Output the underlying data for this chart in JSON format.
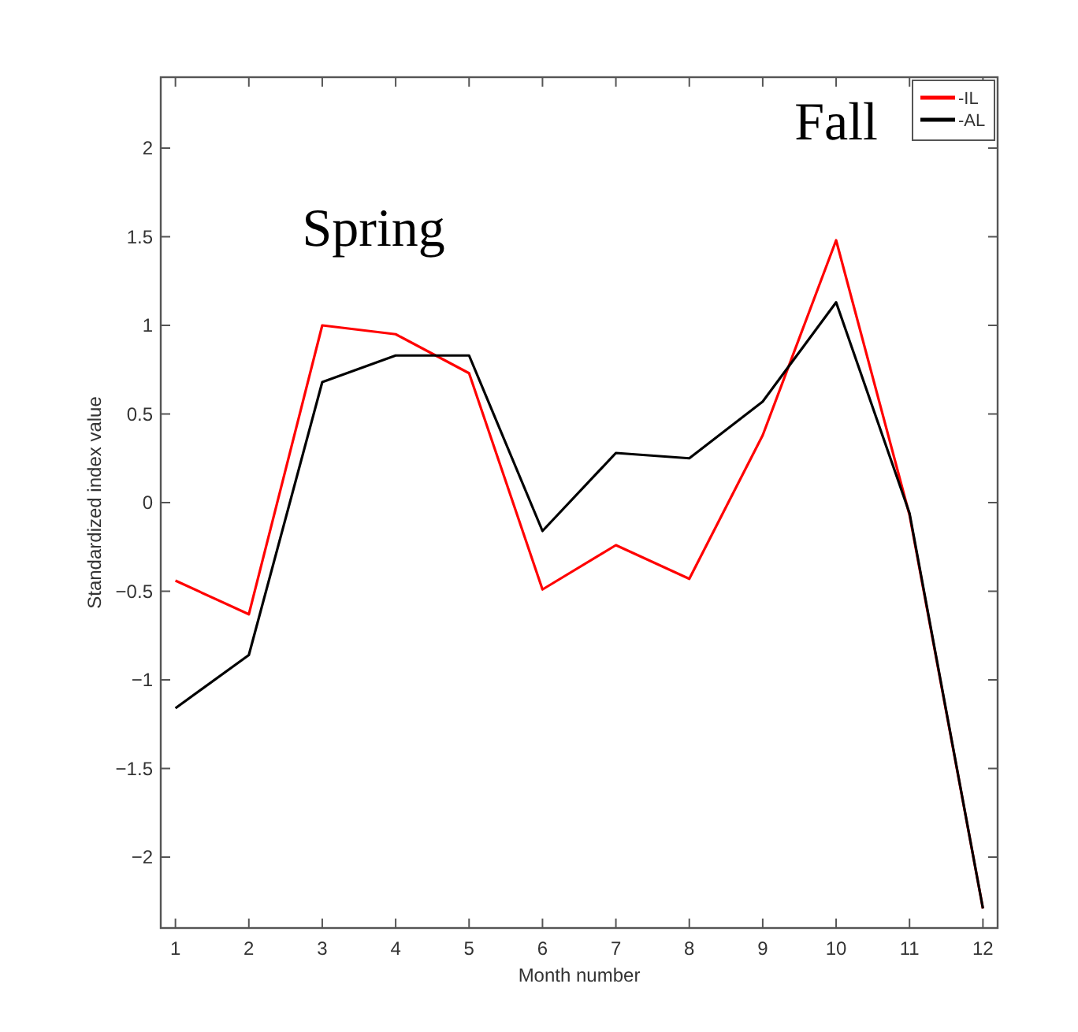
{
  "chart_data": {
    "type": "line",
    "xlabel": "Month number",
    "ylabel": "Standardized index value",
    "annotations": [
      "Spring",
      "Fall"
    ],
    "x": [
      1,
      2,
      3,
      4,
      5,
      6,
      7,
      8,
      9,
      10,
      11,
      12
    ],
    "series": [
      {
        "name": "-IL",
        "color": "#ff0000",
        "values": [
          -0.44,
          -0.63,
          1.0,
          0.95,
          0.73,
          -0.49,
          -0.24,
          -0.43,
          0.38,
          1.48,
          -0.07,
          -2.29
        ]
      },
      {
        "name": "-AL",
        "color": "#000000",
        "values": [
          -1.16,
          -0.86,
          0.68,
          0.83,
          0.83,
          -0.16,
          0.28,
          0.25,
          0.57,
          1.13,
          -0.06,
          -2.29
        ]
      }
    ],
    "xlim": [
      0.8,
      12.2
    ],
    "xticks": [
      1,
      2,
      3,
      4,
      5,
      6,
      7,
      8,
      9,
      10,
      11,
      12
    ],
    "ylim": [
      -2.4,
      2.4
    ],
    "yticks": [
      -2,
      -1.5,
      -1,
      -0.5,
      0,
      0.5,
      1,
      1.5,
      2
    ],
    "grid": false,
    "legend": "top right",
    "marker": "none",
    "line_style": "solid"
  }
}
